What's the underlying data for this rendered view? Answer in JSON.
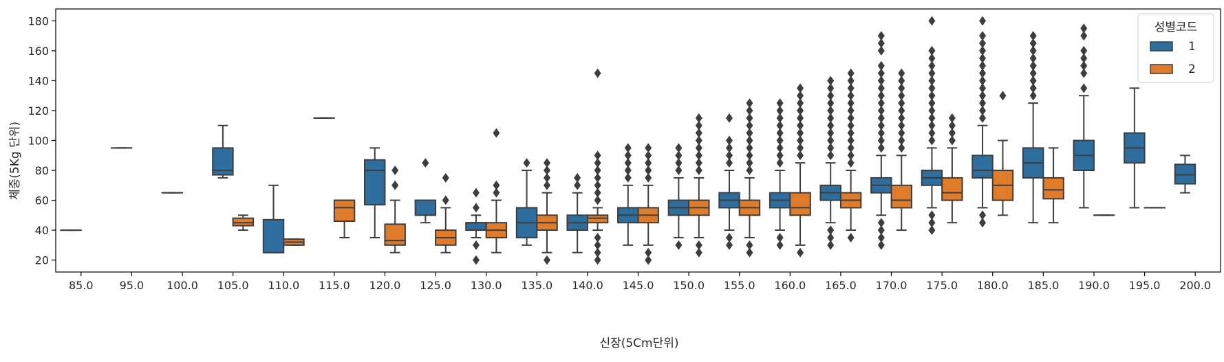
{
  "chart_data": {
    "type": "box",
    "xlabel": "신장(5Cm단위)",
    "ylabel": "체중(5Kg 단위)",
    "ylim": [
      12,
      188
    ],
    "yticks": [
      20,
      40,
      60,
      80,
      100,
      120,
      140,
      160,
      180
    ],
    "categories": [
      "85.0",
      "95.0",
      "100.0",
      "105.0",
      "110.0",
      "115.0",
      "120.0",
      "125.0",
      "130.0",
      "135.0",
      "140.0",
      "145.0",
      "150.0",
      "155.0",
      "160.0",
      "165.0",
      "170.0",
      "175.0",
      "180.0",
      "185.0",
      "190.0",
      "195.0",
      "200.0"
    ],
    "legend": {
      "title": "성별코드",
      "position": "top-right"
    },
    "series": [
      {
        "name": "1",
        "color": "#2e6e9e",
        "boxes": [
          {
            "q1": 40,
            "median": 40,
            "q3": 40,
            "wlo": 40,
            "whi": 40,
            "outliers": []
          },
          {
            "q1": 95,
            "median": 95,
            "q3": 95,
            "wlo": 95,
            "whi": 95,
            "outliers": []
          },
          {
            "q1": 65,
            "median": 65,
            "q3": 65,
            "wlo": 65,
            "whi": 65,
            "outliers": []
          },
          {
            "q1": 77,
            "median": 80,
            "q3": 95,
            "wlo": 75,
            "whi": 110,
            "outliers": []
          },
          {
            "q1": 25,
            "median": 25,
            "q3": 47,
            "wlo": 25,
            "whi": 70,
            "outliers": []
          },
          {
            "q1": 115,
            "median": 115,
            "q3": 115,
            "wlo": 115,
            "whi": 115,
            "outliers": []
          },
          {
            "q1": 57,
            "median": 80,
            "q3": 87,
            "wlo": 35,
            "whi": 95,
            "outliers": []
          },
          {
            "q1": 50,
            "median": 60,
            "q3": 60,
            "wlo": 45,
            "whi": 60,
            "outliers": [
              85
            ]
          },
          {
            "q1": 40,
            "median": 45,
            "q3": 45,
            "wlo": 35,
            "whi": 50,
            "outliers": [
              20,
              30,
              55,
              65
            ]
          },
          {
            "q1": 35,
            "median": 45,
            "q3": 55,
            "wlo": 30,
            "whi": 80,
            "outliers": [
              85
            ]
          },
          {
            "q1": 40,
            "median": 45,
            "q3": 50,
            "wlo": 25,
            "whi": 65,
            "outliers": [
              70,
              75
            ]
          },
          {
            "q1": 45,
            "median": 50,
            "q3": 55,
            "wlo": 30,
            "whi": 70,
            "outliers": [
              75,
              80,
              85,
              90,
              95
            ]
          },
          {
            "q1": 50,
            "median": 55,
            "q3": 60,
            "wlo": 35,
            "whi": 75,
            "outliers": [
              30,
              80,
              85,
              90,
              95
            ]
          },
          {
            "q1": 55,
            "median": 60,
            "q3": 65,
            "wlo": 40,
            "whi": 80,
            "outliers": [
              30,
              35,
              85,
              90,
              95,
              100,
              115
            ]
          },
          {
            "q1": 55,
            "median": 60,
            "q3": 65,
            "wlo": 40,
            "whi": 80,
            "outliers": [
              30,
              35,
              85,
              90,
              95,
              100,
              105,
              110,
              115,
              120,
              125
            ]
          },
          {
            "q1": 60,
            "median": 65,
            "q3": 70,
            "wlo": 45,
            "whi": 85,
            "outliers": [
              30,
              35,
              40,
              90,
              95,
              100,
              105,
              110,
              115,
              120,
              125,
              130,
              135,
              140
            ]
          },
          {
            "q1": 65,
            "median": 70,
            "q3": 75,
            "wlo": 50,
            "whi": 90,
            "outliers": [
              30,
              35,
              40,
              45,
              95,
              100,
              105,
              110,
              115,
              120,
              125,
              130,
              135,
              140,
              145,
              150,
              160,
              165,
              170
            ]
          },
          {
            "q1": 70,
            "median": 75,
            "q3": 80,
            "wlo": 55,
            "whi": 95,
            "outliers": [
              40,
              45,
              50,
              100,
              105,
              110,
              115,
              120,
              125,
              130,
              135,
              140,
              145,
              150,
              155,
              160,
              180
            ]
          },
          {
            "q1": 75,
            "median": 80,
            "q3": 90,
            "wlo": 55,
            "whi": 110,
            "outliers": [
              45,
              50,
              115,
              120,
              125,
              130,
              135,
              140,
              145,
              150,
              155,
              160,
              165,
              170,
              180
            ]
          },
          {
            "q1": 75,
            "median": 85,
            "q3": 95,
            "wlo": 45,
            "whi": 125,
            "outliers": [
              130,
              135,
              140,
              145,
              150,
              155,
              160,
              165,
              170
            ]
          },
          {
            "q1": 80,
            "median": 90,
            "q3": 100,
            "wlo": 55,
            "whi": 130,
            "outliers": [
              135,
              145,
              150,
              155,
              160,
              170,
              175
            ]
          },
          {
            "q1": 85,
            "median": 95,
            "q3": 105,
            "wlo": 55,
            "whi": 135,
            "outliers": []
          },
          {
            "q1": 71,
            "median": 77,
            "q3": 84,
            "wlo": 65,
            "whi": 90,
            "outliers": []
          }
        ]
      },
      {
        "name": "2",
        "color": "#e07b2a",
        "boxes": [
          null,
          null,
          null,
          {
            "q1": 43,
            "median": 45,
            "q3": 48,
            "wlo": 40,
            "whi": 50,
            "outliers": []
          },
          {
            "q1": 30,
            "median": 32,
            "q3": 34,
            "wlo": 30,
            "whi": 34,
            "outliers": []
          },
          {
            "q1": 46,
            "median": 55,
            "q3": 60,
            "wlo": 35,
            "whi": 60,
            "outliers": []
          },
          {
            "q1": 30,
            "median": 33,
            "q3": 44,
            "wlo": 25,
            "whi": 60,
            "outliers": [
              70,
              80
            ]
          },
          {
            "q1": 30,
            "median": 35,
            "q3": 40,
            "wlo": 25,
            "whi": 55,
            "outliers": [
              60,
              75
            ]
          },
          {
            "q1": 35,
            "median": 40,
            "q3": 45,
            "wlo": 25,
            "whi": 60,
            "outliers": [
              65,
              70,
              105
            ]
          },
          {
            "q1": 40,
            "median": 45,
            "q3": 50,
            "wlo": 25,
            "whi": 65,
            "outliers": [
              20,
              70,
              75,
              80,
              85
            ]
          },
          {
            "q1": 45,
            "median": 48,
            "q3": 50,
            "wlo": 40,
            "whi": 55,
            "outliers": [
              20,
              25,
              30,
              35,
              60,
              65,
              70,
              75,
              80,
              85,
              90,
              145
            ]
          },
          {
            "q1": 45,
            "median": 50,
            "q3": 55,
            "wlo": 30,
            "whi": 70,
            "outliers": [
              20,
              25,
              75,
              80,
              85,
              90,
              95
            ]
          },
          {
            "q1": 50,
            "median": 55,
            "q3": 60,
            "wlo": 35,
            "whi": 75,
            "outliers": [
              25,
              30,
              80,
              85,
              90,
              95,
              100,
              105,
              110,
              115
            ]
          },
          {
            "q1": 50,
            "median": 55,
            "q3": 60,
            "wlo": 35,
            "whi": 75,
            "outliers": [
              25,
              30,
              80,
              85,
              90,
              95,
              100,
              105,
              110,
              115,
              120,
              125
            ]
          },
          {
            "q1": 50,
            "median": 55,
            "q3": 65,
            "wlo": 30,
            "whi": 85,
            "outliers": [
              25,
              90,
              95,
              100,
              105,
              110,
              115,
              120,
              125,
              130,
              135
            ]
          },
          {
            "q1": 55,
            "median": 60,
            "q3": 65,
            "wlo": 40,
            "whi": 80,
            "outliers": [
              35,
              85,
              90,
              95,
              100,
              105,
              110,
              115,
              120,
              125,
              130,
              135,
              140,
              145
            ]
          },
          {
            "q1": 55,
            "median": 60,
            "q3": 70,
            "wlo": 40,
            "whi": 90,
            "outliers": [
              95,
              100,
              105,
              110,
              115,
              120,
              125,
              130,
              135,
              140,
              145
            ]
          },
          {
            "q1": 60,
            "median": 65,
            "q3": 75,
            "wlo": 45,
            "whi": 95,
            "outliers": [
              100,
              105,
              110,
              115
            ]
          },
          {
            "q1": 60,
            "median": 70,
            "q3": 80,
            "wlo": 50,
            "whi": 100,
            "outliers": [
              130
            ]
          },
          {
            "q1": 61,
            "median": 67,
            "q3": 75,
            "wlo": 45,
            "whi": 95,
            "outliers": []
          },
          {
            "q1": 50,
            "median": 50,
            "q3": 50,
            "wlo": 50,
            "whi": 50,
            "outliers": []
          },
          {
            "q1": 55,
            "median": 55,
            "q3": 55,
            "wlo": 55,
            "whi": 55,
            "outliers": []
          },
          null
        ]
      }
    ]
  }
}
